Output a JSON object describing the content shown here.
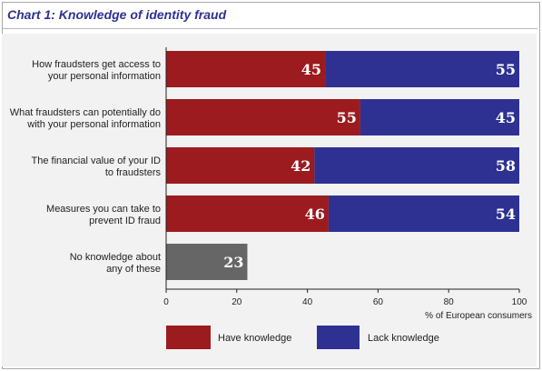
{
  "title": "Chart 1: Knowledge of identity fraud",
  "colors": {
    "have": "#9b1b1f",
    "lack": "#2e3192",
    "none": "#666666",
    "title": "#2e3192"
  },
  "chart_data": {
    "type": "bar",
    "orientation": "horizontal",
    "stacked": true,
    "title": "Chart 1: Knowledge of identity fraud",
    "xlabel": "% of European consumers",
    "ylabel": "",
    "xlim": [
      0,
      100
    ],
    "xticks": [
      0,
      20,
      40,
      60,
      80,
      100
    ],
    "grid": false,
    "legend_position": "bottom",
    "categories": [
      [
        "How fraudsters get access to",
        "your personal information"
      ],
      [
        "What fraudsters can potentially do",
        "with your personal information"
      ],
      [
        "The financial value of your ID",
        "to fraudsters"
      ],
      [
        "Measures you can take to",
        "prevent ID fraud"
      ],
      [
        "No knowledge about",
        "any of these"
      ]
    ],
    "series": [
      {
        "name": "Have knowledge",
        "color": "#9b1b1f",
        "values": [
          45,
          55,
          42,
          46,
          null
        ]
      },
      {
        "name": "Lack knowledge",
        "color": "#2e3192",
        "values": [
          55,
          45,
          58,
          54,
          null
        ]
      }
    ],
    "no_knowledge": {
      "category_index": 4,
      "value": 23,
      "color": "#666666"
    }
  }
}
